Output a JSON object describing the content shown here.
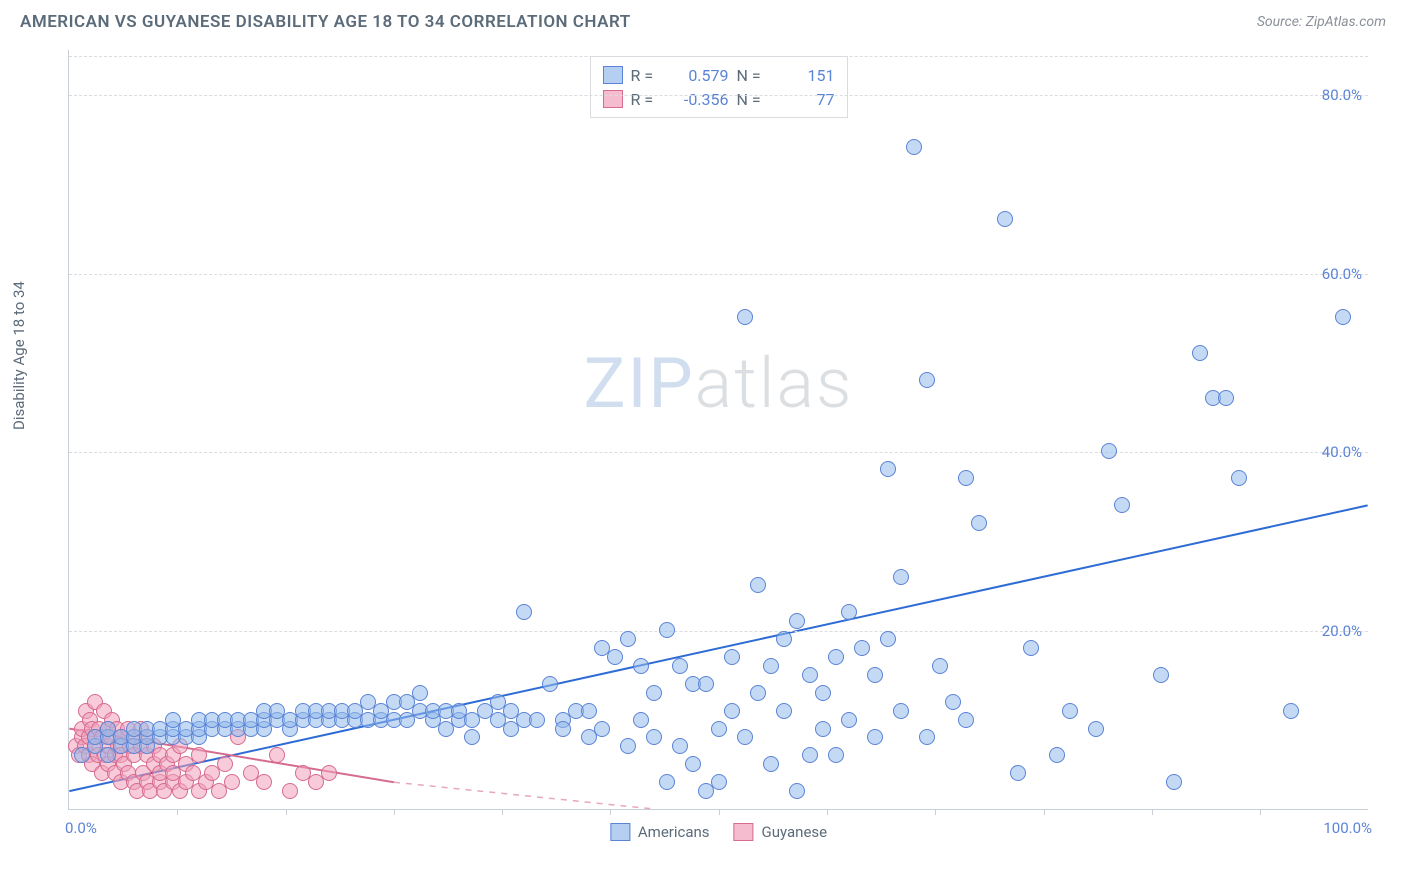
{
  "header": {
    "title": "AMERICAN VS GUYANESE DISABILITY AGE 18 TO 34 CORRELATION CHART",
    "source": "Source: ZipAtlas.com"
  },
  "chart": {
    "type": "scatter",
    "ylabel": "Disability Age 18 to 34",
    "watermark_a": "ZIP",
    "watermark_b": "atlas",
    "background_color": "#ffffff",
    "grid_color": "#d9dde2",
    "axis_color": "#c9cfd6",
    "xlim": [
      0,
      100
    ],
    "ylim": [
      0,
      85
    ],
    "ytick_labels": [
      "20.0%",
      "40.0%",
      "60.0%",
      "80.0%"
    ],
    "ytick_values": [
      20,
      40,
      60,
      80
    ],
    "xtick_minor_step": 8.33,
    "xaxis_left_label": "0.0%",
    "xaxis_right_label": "100.0%",
    "legend_top": {
      "rows": [
        {
          "swatch": "blue",
          "r_label": "R =",
          "r_value": "0.579",
          "n_label": "N =",
          "n_value": "151"
        },
        {
          "swatch": "pink",
          "r_label": "R =",
          "r_value": "-0.356",
          "n_label": "N =",
          "n_value": "77"
        }
      ]
    },
    "legend_bottom": [
      {
        "swatch": "blue",
        "label": "Americans"
      },
      {
        "swatch": "pink",
        "label": "Guyanese"
      }
    ],
    "series": {
      "blue": {
        "color_fill": "rgba(148,186,235,0.55)",
        "color_stroke": "#5b84d6",
        "trend": {
          "x1": 0,
          "y1": 2,
          "x2": 100,
          "y2": 34,
          "stroke": "#2e6bd4",
          "width": 2,
          "dash": "none"
        },
        "points": [
          [
            1,
            6
          ],
          [
            2,
            7
          ],
          [
            2,
            8
          ],
          [
            3,
            6
          ],
          [
            3,
            8
          ],
          [
            3,
            9
          ],
          [
            4,
            7
          ],
          [
            4,
            8
          ],
          [
            5,
            7
          ],
          [
            5,
            8
          ],
          [
            5,
            9
          ],
          [
            6,
            7
          ],
          [
            6,
            8
          ],
          [
            6,
            9
          ],
          [
            7,
            8
          ],
          [
            7,
            9
          ],
          [
            8,
            8
          ],
          [
            8,
            9
          ],
          [
            8,
            10
          ],
          [
            9,
            8
          ],
          [
            9,
            9
          ],
          [
            10,
            8
          ],
          [
            10,
            9
          ],
          [
            10,
            10
          ],
          [
            11,
            9
          ],
          [
            11,
            10
          ],
          [
            12,
            9
          ],
          [
            12,
            10
          ],
          [
            13,
            9
          ],
          [
            13,
            10
          ],
          [
            14,
            9
          ],
          [
            14,
            10
          ],
          [
            15,
            9
          ],
          [
            15,
            10
          ],
          [
            15,
            11
          ],
          [
            16,
            10
          ],
          [
            16,
            11
          ],
          [
            17,
            9
          ],
          [
            17,
            10
          ],
          [
            18,
            10
          ],
          [
            18,
            11
          ],
          [
            19,
            10
          ],
          [
            19,
            11
          ],
          [
            20,
            10
          ],
          [
            20,
            11
          ],
          [
            21,
            10
          ],
          [
            21,
            11
          ],
          [
            22,
            10
          ],
          [
            22,
            11
          ],
          [
            23,
            10
          ],
          [
            23,
            12
          ],
          [
            24,
            10
          ],
          [
            24,
            11
          ],
          [
            25,
            10
          ],
          [
            25,
            12
          ],
          [
            26,
            10
          ],
          [
            26,
            12
          ],
          [
            27,
            11
          ],
          [
            27,
            13
          ],
          [
            28,
            10
          ],
          [
            28,
            11
          ],
          [
            29,
            11
          ],
          [
            29,
            9
          ],
          [
            30,
            10
          ],
          [
            30,
            11
          ],
          [
            31,
            8
          ],
          [
            31,
            10
          ],
          [
            32,
            11
          ],
          [
            33,
            10
          ],
          [
            33,
            12
          ],
          [
            34,
            11
          ],
          [
            34,
            9
          ],
          [
            35,
            22
          ],
          [
            35,
            10
          ],
          [
            36,
            10
          ],
          [
            37,
            14
          ],
          [
            38,
            10
          ],
          [
            38,
            9
          ],
          [
            39,
            11
          ],
          [
            40,
            11
          ],
          [
            40,
            8
          ],
          [
            41,
            9
          ],
          [
            41,
            18
          ],
          [
            42,
            17
          ],
          [
            43,
            19
          ],
          [
            43,
            7
          ],
          [
            44,
            10
          ],
          [
            44,
            16
          ],
          [
            45,
            8
          ],
          [
            45,
            13
          ],
          [
            46,
            20
          ],
          [
            46,
            3
          ],
          [
            47,
            16
          ],
          [
            47,
            7
          ],
          [
            48,
            14
          ],
          [
            48,
            5
          ],
          [
            49,
            14
          ],
          [
            49,
            2
          ],
          [
            50,
            9
          ],
          [
            50,
            3
          ],
          [
            51,
            17
          ],
          [
            51,
            11
          ],
          [
            52,
            55
          ],
          [
            52,
            8
          ],
          [
            53,
            25
          ],
          [
            53,
            13
          ],
          [
            54,
            16
          ],
          [
            54,
            5
          ],
          [
            55,
            19
          ],
          [
            55,
            11
          ],
          [
            56,
            21
          ],
          [
            56,
            2
          ],
          [
            57,
            6
          ],
          [
            57,
            15
          ],
          [
            58,
            13
          ],
          [
            58,
            9
          ],
          [
            59,
            17
          ],
          [
            59,
            6
          ],
          [
            60,
            22
          ],
          [
            60,
            10
          ],
          [
            61,
            18
          ],
          [
            62,
            15
          ],
          [
            62,
            8
          ],
          [
            63,
            38
          ],
          [
            63,
            19
          ],
          [
            64,
            26
          ],
          [
            64,
            11
          ],
          [
            65,
            74
          ],
          [
            66,
            48
          ],
          [
            66,
            8
          ],
          [
            67,
            16
          ],
          [
            68,
            12
          ],
          [
            69,
            37
          ],
          [
            69,
            10
          ],
          [
            70,
            32
          ],
          [
            72,
            66
          ],
          [
            73,
            4
          ],
          [
            74,
            18
          ],
          [
            76,
            6
          ],
          [
            77,
            11
          ],
          [
            79,
            9
          ],
          [
            80,
            40
          ],
          [
            81,
            34
          ],
          [
            84,
            15
          ],
          [
            85,
            3
          ],
          [
            87,
            51
          ],
          [
            88,
            46
          ],
          [
            89,
            46
          ],
          [
            90,
            37
          ],
          [
            94,
            11
          ],
          [
            98,
            55
          ]
        ]
      },
      "pink": {
        "color_fill": "rgba(240,160,185,0.55)",
        "color_stroke": "#d66b90",
        "trend_solid": {
          "x1": 0,
          "y1": 9,
          "x2": 25,
          "y2": 3,
          "stroke": "#d66b90",
          "width": 2
        },
        "trend_dash": {
          "x1": 25,
          "y1": 3,
          "x2": 45,
          "y2": 0,
          "stroke": "#e6a8bb",
          "width": 1.5
        },
        "points": [
          [
            0.5,
            7
          ],
          [
            0.8,
            6
          ],
          [
            1,
            8
          ],
          [
            1,
            9
          ],
          [
            1.2,
            7
          ],
          [
            1.3,
            11
          ],
          [
            1.5,
            6
          ],
          [
            1.5,
            8
          ],
          [
            1.6,
            10
          ],
          [
            1.8,
            5
          ],
          [
            1.8,
            9
          ],
          [
            2,
            7
          ],
          [
            2,
            8
          ],
          [
            2,
            12
          ],
          [
            2.2,
            6
          ],
          [
            2.3,
            9
          ],
          [
            2.5,
            4
          ],
          [
            2.5,
            8
          ],
          [
            2.7,
            11
          ],
          [
            2.8,
            6
          ],
          [
            3,
            7
          ],
          [
            3,
            9
          ],
          [
            3,
            5
          ],
          [
            3.2,
            8
          ],
          [
            3.3,
            10
          ],
          [
            3.5,
            6
          ],
          [
            3.5,
            4
          ],
          [
            3.7,
            9
          ],
          [
            3.8,
            7
          ],
          [
            4,
            3
          ],
          [
            4,
            8
          ],
          [
            4,
            6
          ],
          [
            4.2,
            5
          ],
          [
            4.5,
            9
          ],
          [
            4.5,
            4
          ],
          [
            4.7,
            7
          ],
          [
            5,
            3
          ],
          [
            5,
            8
          ],
          [
            5,
            6
          ],
          [
            5.2,
            2
          ],
          [
            5.5,
            7
          ],
          [
            5.5,
            9
          ],
          [
            5.7,
            4
          ],
          [
            6,
            3
          ],
          [
            6,
            6
          ],
          [
            6,
            8
          ],
          [
            6.2,
            2
          ],
          [
            6.5,
            5
          ],
          [
            6.5,
            7
          ],
          [
            7,
            3
          ],
          [
            7,
            4
          ],
          [
            7,
            6
          ],
          [
            7.3,
            2
          ],
          [
            7.5,
            5
          ],
          [
            8,
            3
          ],
          [
            8,
            6
          ],
          [
            8,
            4
          ],
          [
            8.5,
            2
          ],
          [
            8.5,
            7
          ],
          [
            9,
            3
          ],
          [
            9,
            5
          ],
          [
            9.5,
            4
          ],
          [
            10,
            2
          ],
          [
            10,
            6
          ],
          [
            10.5,
            3
          ],
          [
            11,
            4
          ],
          [
            11.5,
            2
          ],
          [
            12,
            5
          ],
          [
            12.5,
            3
          ],
          [
            13,
            8
          ],
          [
            14,
            4
          ],
          [
            15,
            3
          ],
          [
            16,
            6
          ],
          [
            17,
            2
          ],
          [
            18,
            4
          ],
          [
            19,
            3
          ],
          [
            20,
            4
          ]
        ]
      }
    }
  }
}
